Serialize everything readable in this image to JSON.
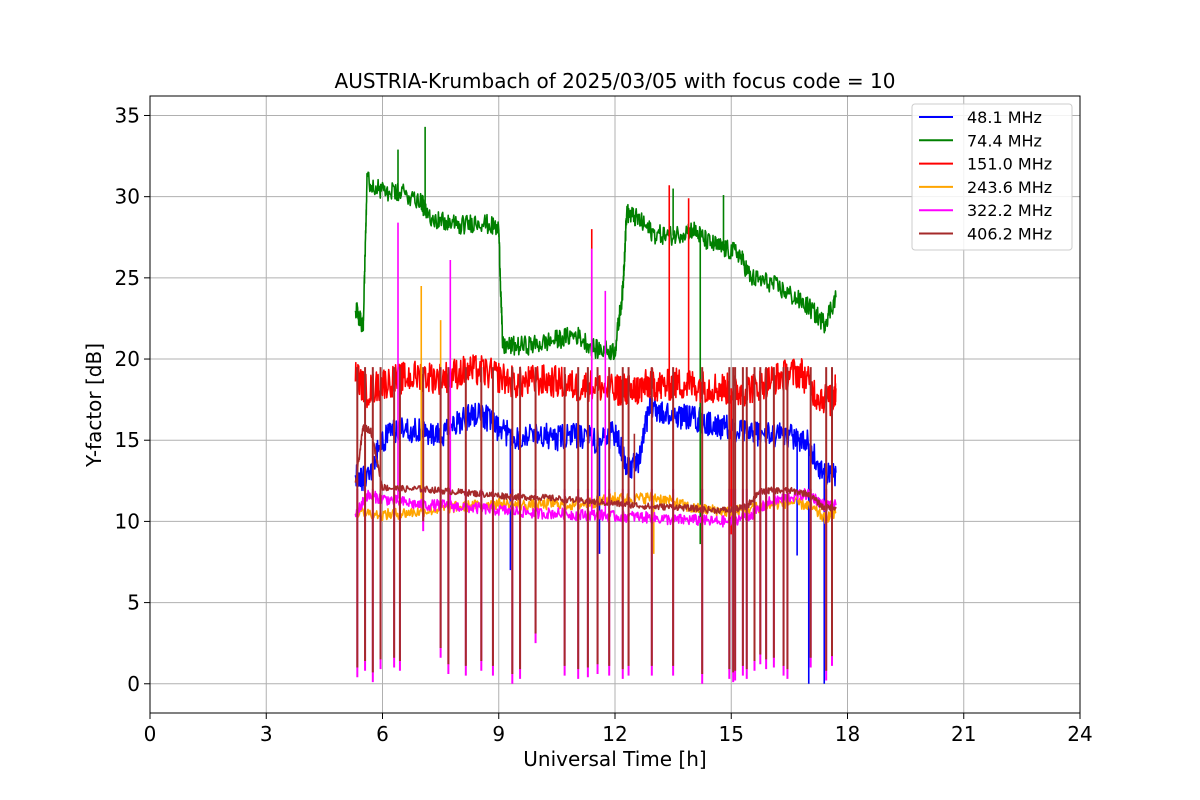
{
  "chart_data": {
    "type": "line",
    "title": "AUSTRIA-Krumbach of 2025/03/05 with focus code = 10",
    "xlabel": "Universal Time [h]",
    "ylabel": "Y-factor [dB]",
    "xlim": [
      0,
      24
    ],
    "ylim": [
      -1.8,
      36.2
    ],
    "xticks": [
      0,
      3,
      6,
      9,
      12,
      15,
      18,
      21,
      24
    ],
    "xtick_labels": [
      "0",
      "3",
      "6",
      "9",
      "12",
      "15",
      "18",
      "21",
      "24"
    ],
    "yticks": [
      0,
      5,
      10,
      15,
      20,
      25,
      30,
      35
    ],
    "ytick_labels": [
      "0",
      "5",
      "10",
      "15",
      "20",
      "25",
      "30",
      "35"
    ],
    "grid": true,
    "legend_position": "top-right",
    "series": [
      {
        "name": " 48.1 MHz",
        "color": "#0000ff",
        "x": [
          5.3,
          5.6,
          6.0,
          6.5,
          7.0,
          7.5,
          8.0,
          8.5,
          9.0,
          9.5,
          10.0,
          10.5,
          11.0,
          11.5,
          12.0,
          12.3,
          12.6,
          12.9,
          13.2,
          13.6,
          14.0,
          14.4,
          14.8,
          15.2,
          15.6,
          16.0,
          16.5,
          17.0,
          17.4,
          17.7
        ],
        "y": [
          13.0,
          12.5,
          15.0,
          15.8,
          15.5,
          15.2,
          16.2,
          16.8,
          15.6,
          15.2,
          15.4,
          15.1,
          15.3,
          15.0,
          15.4,
          13.5,
          13.4,
          17.3,
          16.6,
          16.5,
          16.4,
          16.0,
          15.8,
          15.5,
          15.5,
          15.3,
          15.3,
          14.8,
          12.8,
          13.0
        ],
        "spikes_x": [
          9.3,
          11.6,
          16.7,
          17.0,
          17.4
        ],
        "spikes_y": [
          7.0,
          8.0,
          7.9,
          0.0,
          0.0
        ]
      },
      {
        "name": " 74.4 MHz",
        "color": "#008000",
        "x": [
          5.3,
          5.5,
          5.6,
          6.0,
          6.5,
          7.0,
          7.1,
          7.5,
          8.0,
          8.5,
          9.0,
          9.1,
          9.5,
          10.0,
          10.5,
          11.0,
          11.5,
          12.0,
          12.2,
          12.3,
          12.6,
          13.0,
          13.5,
          14.0,
          14.4,
          14.8,
          15.2,
          15.5,
          16.0,
          16.5,
          17.0,
          17.4,
          17.7
        ],
        "y": [
          23.2,
          22.0,
          31.0,
          30.3,
          30.2,
          29.8,
          29.0,
          28.5,
          28.2,
          28.5,
          28.0,
          20.8,
          20.8,
          20.9,
          21.2,
          21.5,
          20.6,
          20.5,
          24.2,
          29.0,
          28.6,
          27.7,
          27.6,
          28.0,
          27.2,
          26.8,
          26.5,
          25.0,
          24.7,
          24.0,
          23.2,
          22.2,
          23.8
        ],
        "spikes_x": [
          6.4,
          7.1,
          13.5,
          14.2,
          14.8
        ],
        "spikes_y": [
          32.9,
          34.3,
          30.5,
          8.6,
          30.1
        ]
      },
      {
        "name": " 151.0 MHz",
        "color": "#ff0000",
        "x": [
          5.3,
          5.6,
          6.0,
          6.5,
          7.0,
          7.5,
          8.0,
          8.5,
          9.0,
          9.5,
          10.0,
          10.5,
          11.0,
          11.5,
          12.0,
          12.2,
          12.4,
          12.6,
          12.9,
          13.2,
          13.6,
          14.0,
          14.4,
          14.8,
          15.2,
          15.6,
          16.0,
          16.4,
          16.8,
          17.2,
          17.6,
          17.7
        ],
        "y": [
          19.0,
          18.0,
          18.5,
          18.8,
          19.0,
          18.8,
          19.2,
          19.3,
          18.9,
          18.5,
          18.7,
          18.6,
          18.3,
          18.4,
          18.0,
          18.2,
          18.0,
          18.1,
          18.5,
          18.3,
          18.5,
          18.4,
          18.3,
          18.2,
          18.0,
          18.3,
          18.7,
          19.0,
          19.2,
          17.8,
          17.4,
          18.2
        ],
        "spikes_x": [
          11.4,
          13.4,
          13.9,
          15.0
        ],
        "spikes_y": [
          28.0,
          30.7,
          29.9,
          9.2
        ]
      },
      {
        "name": " 243.6 MHz",
        "color": "#ffa500",
        "x": [
          5.3,
          6.0,
          6.5,
          7.0,
          7.5,
          8.0,
          8.5,
          9.0,
          9.5,
          10.0,
          10.5,
          11.0,
          11.5,
          12.0,
          12.5,
          13.0,
          13.5,
          14.0,
          14.5,
          15.0,
          15.5,
          16.0,
          16.5,
          17.0,
          17.4,
          17.7
        ],
        "y": [
          10.6,
          10.4,
          10.5,
          10.6,
          10.8,
          10.9,
          11.0,
          11.1,
          11.0,
          11.0,
          11.1,
          11.0,
          11.2,
          11.4,
          11.4,
          11.5,
          11.2,
          10.8,
          10.7,
          10.6,
          10.8,
          11.0,
          11.2,
          11.0,
          10.2,
          10.5
        ],
        "spikes_x": [
          7.0,
          7.5,
          12.0,
          13.0
        ],
        "spikes_y": [
          24.5,
          22.4,
          11.8,
          8.0
        ]
      },
      {
        "name": " 322.2 MHz",
        "color": "#ff00ff",
        "x": [
          5.3,
          5.6,
          6.0,
          6.5,
          7.0,
          7.5,
          8.0,
          8.5,
          9.0,
          9.5,
          10.0,
          10.5,
          11.0,
          11.5,
          12.0,
          12.5,
          13.0,
          13.5,
          14.0,
          14.5,
          15.0,
          15.5,
          16.0,
          16.5,
          17.0,
          17.4,
          17.7
        ],
        "y": [
          10.4,
          11.6,
          11.4,
          11.2,
          11.0,
          11.0,
          10.9,
          10.8,
          10.7,
          10.6,
          10.5,
          10.5,
          10.4,
          10.4,
          10.3,
          10.3,
          10.2,
          10.1,
          10.1,
          10.0,
          10.0,
          10.4,
          11.2,
          11.5,
          11.7,
          11.0,
          11.0
        ],
        "spikes_x": [
          6.4,
          7.75,
          11.4,
          11.75
        ],
        "spikes_y": [
          28.4,
          26.1,
          26.8,
          24.2
        ]
      },
      {
        "name": " 406.2 MHz",
        "color": "#a52a2a",
        "x": [
          5.3,
          5.5,
          5.7,
          6.0,
          6.5,
          7.0,
          7.5,
          8.0,
          8.5,
          9.0,
          9.5,
          10.0,
          10.5,
          11.0,
          11.5,
          12.0,
          12.5,
          13.0,
          13.5,
          14.0,
          14.5,
          15.0,
          15.4,
          15.7,
          16.0,
          16.5,
          17.0,
          17.4,
          17.7
        ],
        "y": [
          12.2,
          15.8,
          15.6,
          12.1,
          12.0,
          12.0,
          11.9,
          11.8,
          11.7,
          11.6,
          11.5,
          11.5,
          11.4,
          11.3,
          11.2,
          11.1,
          11.0,
          10.9,
          10.9,
          10.8,
          10.7,
          10.7,
          10.9,
          11.8,
          11.9,
          11.9,
          11.7,
          10.8,
          10.9
        ],
        "spikes_x": [
          12.5
        ],
        "spikes_y": [
          15.4
        ]
      }
    ],
    "dropouts_x": [
      5.35,
      5.55,
      5.75,
      5.95,
      6.3,
      6.45,
      7.05,
      7.5,
      7.7,
      8.15,
      8.55,
      8.85,
      9.35,
      9.55,
      9.95,
      10.7,
      11.05,
      11.3,
      11.55,
      11.85,
      12.2,
      12.35,
      12.95,
      13.5,
      14.25,
      14.95,
      15.05,
      15.1,
      15.3,
      15.4,
      15.6,
      15.75,
      15.9,
      16.1,
      16.35,
      16.45,
      17.05,
      17.45,
      17.6
    ],
    "dropouts_y": [
      0.4,
      0.8,
      0.1,
      0.9,
      1.0,
      0.8,
      9.4,
      1.6,
      0.6,
      0.5,
      0.8,
      0.5,
      0.0,
      0.3,
      2.5,
      0.5,
      0.3,
      0.4,
      0.6,
      0.5,
      0.3,
      0.5,
      0.5,
      0.5,
      0.0,
      0.3,
      0.1,
      0.2,
      0.5,
      0.3,
      0.8,
      1.2,
      0.9,
      1.0,
      0.5,
      0.3,
      1.0,
      0.2,
      1.1
    ]
  }
}
